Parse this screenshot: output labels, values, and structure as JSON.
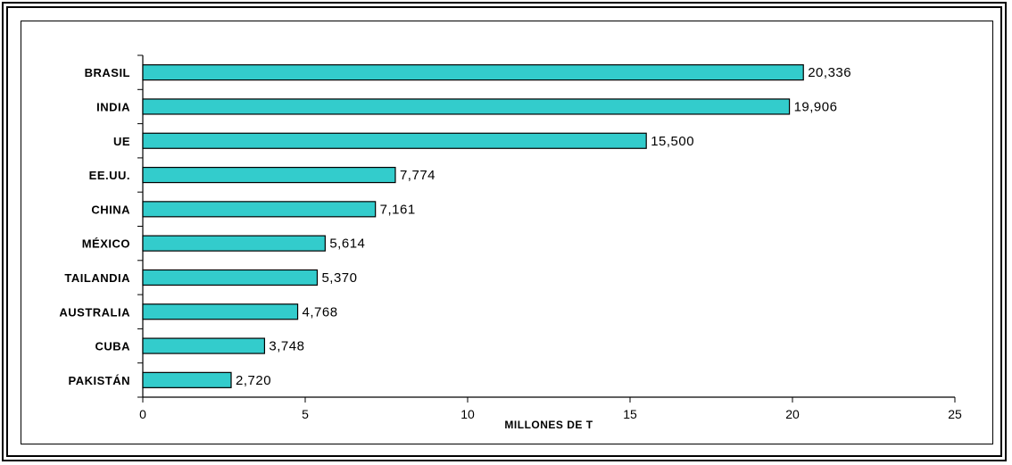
{
  "chart_data": {
    "type": "bar",
    "orientation": "horizontal",
    "categories": [
      "Brasil",
      "India",
      "UE",
      "EE.UU.",
      "China",
      "México",
      "Tailandia",
      "Australia",
      "Cuba",
      "Pakistán"
    ],
    "category_labels": [
      "BRASIL",
      "INDIA",
      "UE",
      "EE.UU.",
      "CHINA",
      "MÉXICO",
      "TAILANDIA",
      "AUSTRALIA",
      "CUBA",
      "PAKISTÁN"
    ],
    "values": [
      20.336,
      19.906,
      15.5,
      7.774,
      7.161,
      5.614,
      5.37,
      4.768,
      3.748,
      2.72
    ],
    "value_labels": [
      "20,336",
      "19,906",
      "15,500",
      "7,774",
      "7,161",
      "5,614",
      "5,370",
      "4,768",
      "3,748",
      "2,720"
    ],
    "xlabel": "MILLONES DE T",
    "ylabel": "",
    "title": "",
    "xlim": [
      0,
      25
    ],
    "xticks": [
      0,
      5,
      10,
      15,
      20,
      25
    ],
    "grid": false,
    "legend": "none",
    "colors": {
      "bar_fill": "#33CCCC",
      "bar_stroke": "#000000",
      "axis": "#000000",
      "background": "#FFFFFF"
    }
  }
}
